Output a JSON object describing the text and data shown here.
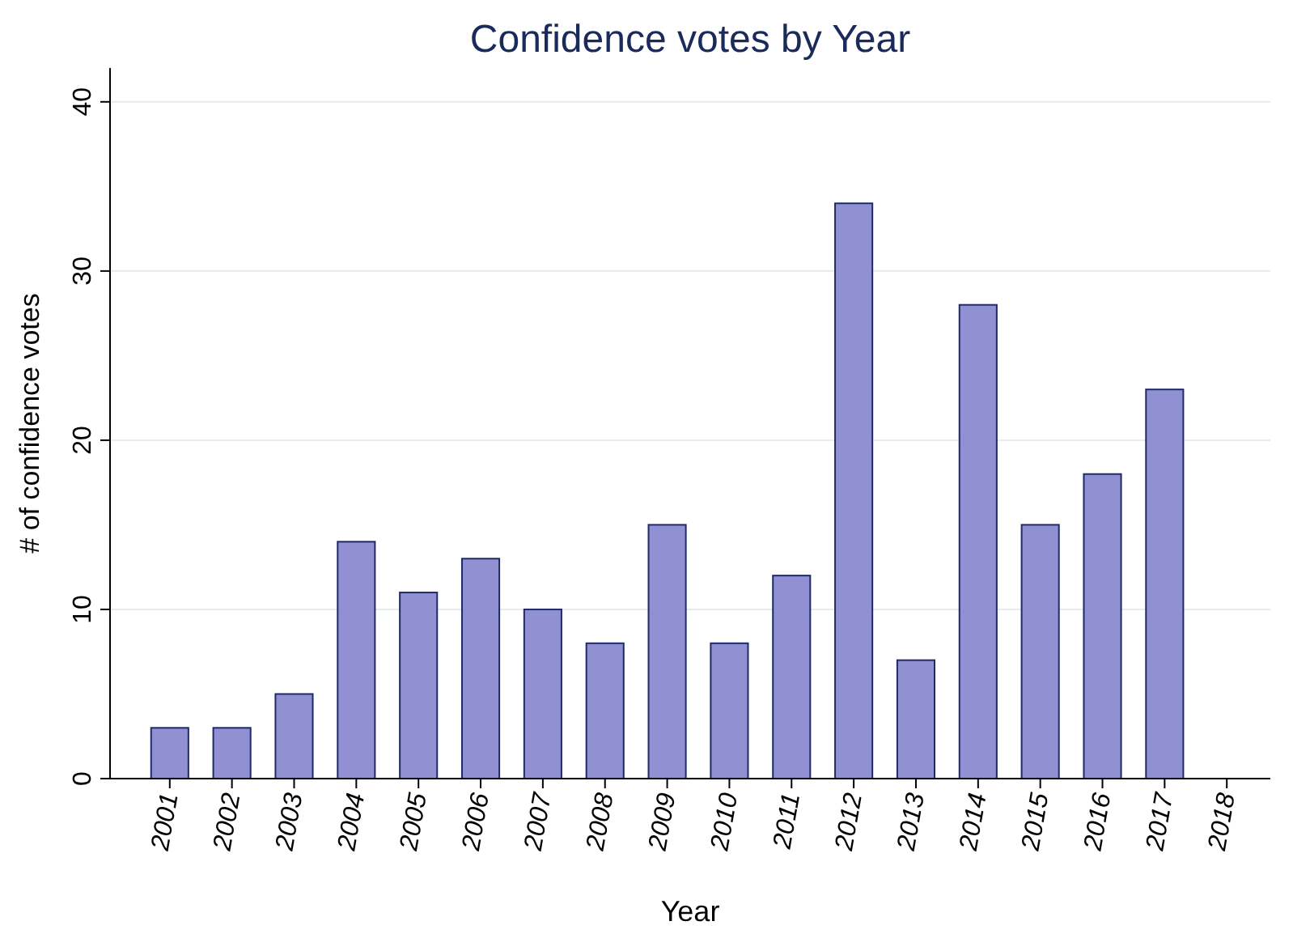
{
  "chart_data": {
    "type": "bar",
    "title": "Confidence votes by Year",
    "xlabel": "Year",
    "ylabel": "# of confidence votes",
    "categories": [
      "2001",
      "2002",
      "2003",
      "2004",
      "2005",
      "2006",
      "2007",
      "2008",
      "2009",
      "2010",
      "2011",
      "2012",
      "2013",
      "2014",
      "2015",
      "2016",
      "2017",
      "2018"
    ],
    "values": [
      3,
      3,
      5,
      14,
      11,
      13,
      10,
      8,
      15,
      8,
      12,
      34,
      7,
      28,
      15,
      18,
      23,
      0
    ],
    "color": "#9090d2",
    "ylim": [
      0,
      42
    ],
    "yticks": [
      0,
      10,
      20,
      30,
      40
    ],
    "grid": "y"
  }
}
